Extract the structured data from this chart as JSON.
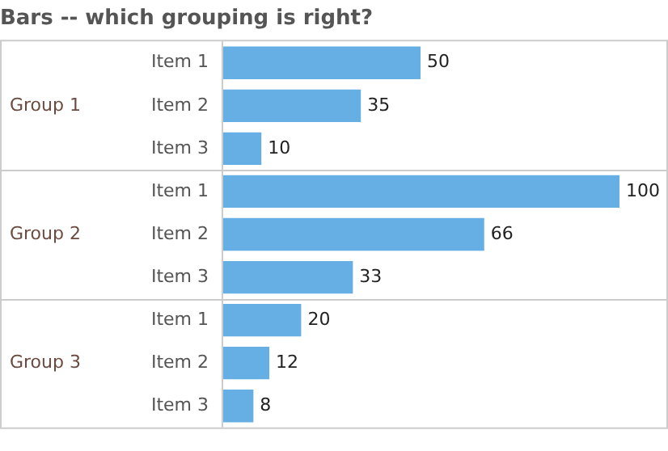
{
  "chart_data": {
    "type": "bar",
    "orientation": "horizontal",
    "title": "Bars -- which grouping is right?",
    "categories": [
      "Item 1",
      "Item 2",
      "Item 3",
      "Item 1",
      "Item 2",
      "Item 3",
      "Item 1",
      "Item 2",
      "Item 3"
    ],
    "values": [
      50,
      35,
      10,
      100,
      66,
      33,
      20,
      12,
      8
    ],
    "color": "#65afe4",
    "tick_labels": "y",
    "data_labels": true,
    "annotations": [
      "Group 1",
      "Group 2",
      "Group 3"
    ]
  }
}
